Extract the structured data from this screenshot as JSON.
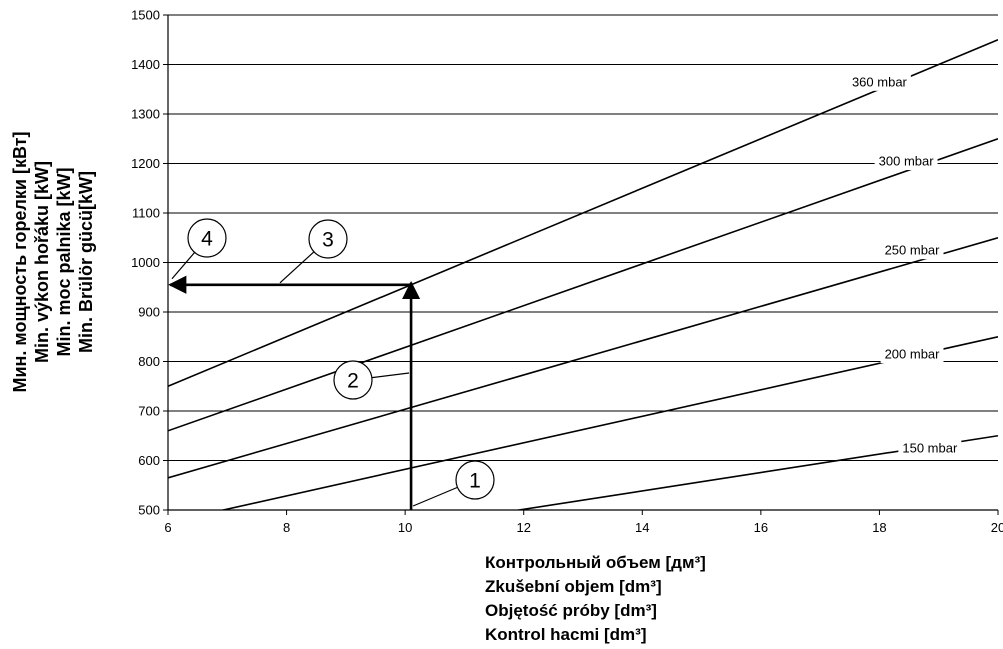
{
  "chart_data": {
    "type": "line",
    "x": [
      6,
      20
    ],
    "xlim": [
      6,
      20
    ],
    "ylim": [
      500,
      1500
    ],
    "xticks": [
      6,
      8,
      10,
      12,
      14,
      16,
      18,
      20
    ],
    "yticks": [
      500,
      600,
      700,
      800,
      900,
      1000,
      1100,
      1200,
      1300,
      1400,
      1500
    ],
    "grid": "horizontal",
    "series": [
      {
        "name": "360 mbar",
        "values": [
          750,
          1450
        ]
      },
      {
        "name": "300 mbar",
        "values": [
          660,
          1250
        ]
      },
      {
        "name": "250 mbar",
        "values": [
          565,
          1050
        ]
      },
      {
        "name": "200 mbar",
        "values": [
          475,
          850
        ]
      },
      {
        "name": "150 mbar",
        "values": [
          390,
          650
        ]
      }
    ],
    "ylabel_lines": [
      "Мин. мощность горелки [кВт]",
      "Min. výkon hořáku [kW]",
      "Min. moc palnika [kW]",
      "Min. Brülör gücü[kW]"
    ],
    "xlabel_lines": [
      "Контрольный объем [дм³]",
      "Zkušební objem [dm³]",
      "Objętość próby [dm³]",
      "Kontrol hacmi [dm³]"
    ],
    "reading": {
      "x": 10.1,
      "y_start": 500,
      "y": 955,
      "x_end": 6
    },
    "callouts": [
      "1",
      "2",
      "3",
      "4"
    ]
  }
}
